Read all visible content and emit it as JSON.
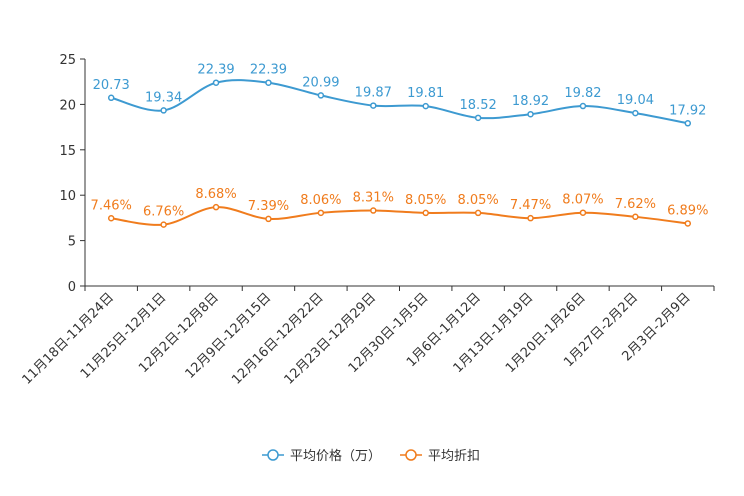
{
  "chart_data": {
    "type": "line",
    "title": "",
    "xlabel": "",
    "ylabel": "",
    "ylim": [
      0,
      25
    ],
    "yticks": [
      0,
      5,
      10,
      15,
      20,
      25
    ],
    "grid": false,
    "legend_position": "bottom-center",
    "categories": [
      "11月18日-11月24日",
      "11月25日-12月1日",
      "12月2日-12月8日",
      "12月9日-12月15日",
      "12月16日-12月22日",
      "12月23日-12月29日",
      "12月30日-1月5日",
      "1月6日-1月12日",
      "1月13日-1月19日",
      "1月20日-1月26日",
      "1月27日-2月2日",
      "2月3日-2月9日"
    ],
    "series": [
      {
        "name": "平均价格（万）",
        "color": "#3d9ad1",
        "values": [
          20.73,
          19.34,
          22.39,
          22.39,
          20.99,
          19.87,
          19.81,
          18.52,
          18.92,
          19.82,
          19.04,
          17.92
        ],
        "labels": [
          "20.73",
          "19.34",
          "22.39",
          "22.39",
          "20.99",
          "19.87",
          "19.81",
          "18.52",
          "18.92",
          "19.82",
          "19.04",
          "17.92"
        ]
      },
      {
        "name": "平均折扣",
        "color": "#f07c1d",
        "values": [
          7.46,
          6.76,
          8.68,
          7.39,
          8.06,
          8.31,
          8.05,
          8.05,
          7.47,
          8.07,
          7.62,
          6.89
        ],
        "labels": [
          "7.46%",
          "6.76%",
          "8.68%",
          "7.39%",
          "8.06%",
          "8.31%",
          "8.05%",
          "8.05%",
          "7.47%",
          "8.07%",
          "7.62%",
          "6.89%"
        ]
      }
    ]
  }
}
